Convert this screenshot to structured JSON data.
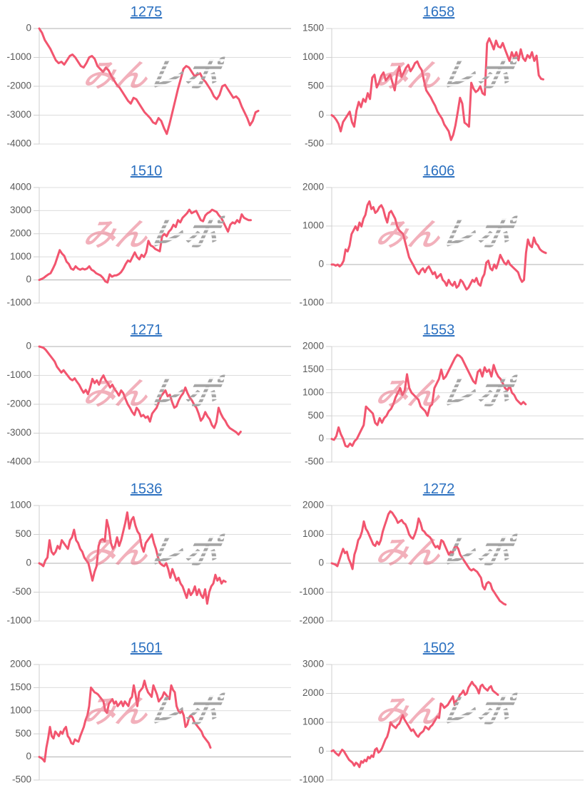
{
  "style": {
    "line_color": "#f2556f",
    "title_color": "#2b70c0",
    "grid_color": "#dcdcdc",
    "zero_line_color": "#b0b0b0",
    "axis_line_color": "#cfcfcf",
    "tick_label_color": "#595959",
    "watermark_pink": "#e77084",
    "watermark_gray": "#a5a5a5"
  },
  "watermark": {
    "pink_text": "みん",
    "gray_text": "レポ"
  },
  "chart_data": [
    {
      "type": "line",
      "title": "1275",
      "ylim": [
        -4000,
        0
      ],
      "yticks": [
        0,
        -1000,
        -2000,
        -3000,
        -4000
      ],
      "x_end_frac": 0.87,
      "grid": true,
      "legend": "none",
      "values": [
        0,
        -150,
        -400,
        -550,
        -700,
        -900,
        -1100,
        -1200,
        -1150,
        -1250,
        -1100,
        -950,
        -900,
        -1000,
        -1150,
        -1300,
        -1350,
        -1200,
        -1000,
        -950,
        -1050,
        -1300,
        -1400,
        -1500,
        -1350,
        -1450,
        -1650,
        -1800,
        -1950,
        -2050,
        -2200,
        -2350,
        -2500,
        -2600,
        -2400,
        -2450,
        -2600,
        -2750,
        -2900,
        -3000,
        -3100,
        -3250,
        -3300,
        -3100,
        -3200,
        -3450,
        -3650,
        -3300,
        -2900,
        -2500,
        -2100,
        -1750,
        -1400,
        -1300,
        -1350,
        -1500,
        -1650,
        -1600,
        -1550,
        -1750,
        -1850,
        -2000,
        -2150,
        -2350,
        -2450,
        -2300,
        -2000,
        -1950,
        -2100,
        -2250,
        -2400,
        -2350,
        -2450,
        -2700,
        -2900,
        -3100,
        -3350,
        -3200,
        -2900,
        -2850
      ]
    },
    {
      "type": "line",
      "title": "1658",
      "ylim": [
        -500,
        1500
      ],
      "yticks": [
        1500,
        1000,
        500,
        0,
        -500
      ],
      "x_end_frac": 0.84,
      "grid": true,
      "legend": "none",
      "values": [
        0,
        -30,
        -80,
        -150,
        -280,
        -120,
        -60,
        0,
        60,
        -120,
        -200,
        80,
        230,
        140,
        280,
        230,
        380,
        280,
        650,
        700,
        480,
        560,
        680,
        740,
        600,
        650,
        700,
        560,
        430,
        700,
        840,
        660,
        740,
        820,
        870,
        760,
        820,
        900,
        930,
        840,
        780,
        600,
        430,
        370,
        310,
        230,
        160,
        60,
        0,
        -60,
        -160,
        -220,
        -280,
        -430,
        -340,
        -170,
        60,
        300,
        200,
        -130,
        -160,
        -200,
        560,
        460,
        400,
        430,
        500,
        380,
        350,
        1240,
        1330,
        1240,
        1140,
        1290,
        1190,
        1170,
        1250,
        1140,
        1040,
        940,
        1090,
        990,
        1090,
        950,
        1140,
        990,
        940,
        1040,
        990,
        1090,
        940,
        1030,
        690,
        630,
        620
      ]
    },
    {
      "type": "line",
      "title": "1510",
      "ylim": [
        -1000,
        4000
      ],
      "yticks": [
        4000,
        3000,
        2000,
        1000,
        0,
        -1000
      ],
      "x_end_frac": 0.84,
      "grid": true,
      "legend": "none",
      "values": [
        0,
        40,
        90,
        170,
        240,
        290,
        480,
        690,
        990,
        1290,
        1140,
        1040,
        790,
        690,
        490,
        440,
        590,
        490,
        440,
        490,
        450,
        490,
        590,
        440,
        390,
        290,
        240,
        190,
        90,
        -60,
        -110,
        240,
        140,
        190,
        200,
        250,
        340,
        490,
        690,
        840,
        790,
        990,
        1190,
        990,
        890,
        1090,
        990,
        1190,
        1690,
        1490,
        1440,
        1340,
        1290,
        1240,
        1890,
        1990,
        1890,
        2090,
        2190,
        2390,
        2290,
        2590,
        2490,
        2690,
        2790,
        2890,
        3040,
        2890,
        2940,
        2990,
        2790,
        2590,
        2540,
        2790,
        2890,
        2940,
        3040,
        2990,
        2940,
        2790,
        2690,
        2490,
        2290,
        2090,
        2390,
        2490,
        2440,
        2590,
        2490,
        2840,
        2690,
        2640,
        2590,
        2590
      ]
    },
    {
      "type": "line",
      "title": "1606",
      "ylim": [
        -1000,
        2000
      ],
      "yticks": [
        2000,
        1000,
        0,
        -1000
      ],
      "x_end_frac": 0.85,
      "grid": true,
      "legend": "none",
      "values": [
        0,
        0,
        -30,
        0,
        -50,
        0,
        100,
        390,
        340,
        490,
        790,
        890,
        990,
        890,
        1090,
        990,
        1190,
        1290,
        1540,
        1640,
        1440,
        1490,
        1340,
        1390,
        1490,
        1540,
        1440,
        1240,
        1090,
        1340,
        1390,
        1290,
        1190,
        990,
        890,
        840,
        790,
        590,
        390,
        190,
        90,
        0,
        -100,
        -200,
        -250,
        -150,
        -100,
        -200,
        -100,
        -50,
        -150,
        -250,
        -200,
        -350,
        -300,
        -250,
        -400,
        -450,
        -550,
        -400,
        -500,
        -550,
        -450,
        -600,
        -550,
        -400,
        -450,
        -550,
        -650,
        -600,
        -500,
        -400,
        -450,
        -350,
        -500,
        -550,
        -350,
        -250,
        50,
        100,
        -100,
        -150,
        0,
        -100,
        50,
        250,
        150,
        50,
        0,
        100,
        0,
        -50,
        -100,
        -150,
        -200,
        -350,
        -450,
        -400,
        300,
        650,
        500,
        450,
        700,
        550,
        500,
        400,
        350,
        320,
        300
      ]
    },
    {
      "type": "line",
      "title": "1271",
      "ylim": [
        -4000,
        0
      ],
      "yticks": [
        0,
        -1000,
        -2000,
        -3000,
        -4000
      ],
      "x_end_frac": 0.8,
      "grid": true,
      "legend": "none",
      "values": [
        0,
        -20,
        -50,
        -120,
        -220,
        -320,
        -420,
        -520,
        -700,
        -800,
        -900,
        -820,
        -920,
        -1020,
        -1120,
        -1170,
        -1100,
        -1220,
        -1320,
        -1470,
        -1600,
        -1500,
        -1650,
        -1420,
        -1120,
        -1270,
        -1170,
        -1320,
        -1120,
        -1000,
        -1170,
        -1270,
        -1420,
        -1320,
        -1470,
        -1570,
        -1700,
        -1520,
        -1620,
        -1820,
        -2000,
        -2120,
        -2270,
        -2370,
        -2120,
        -2220,
        -2420,
        -2370,
        -2470,
        -2420,
        -2600,
        -2320,
        -2220,
        -2120,
        -1920,
        -1720,
        -1620,
        -1520,
        -1720,
        -1670,
        -1920,
        -2120,
        -2070,
        -1870,
        -1720,
        -1620,
        -1420,
        -1620,
        -1770,
        -1870,
        -2020,
        -2120,
        -2320,
        -2570,
        -2470,
        -2270,
        -2420,
        -2520,
        -2720,
        -2820,
        -2620,
        -2120,
        -2320,
        -2470,
        -2570,
        -2720,
        -2820,
        -2870,
        -2920,
        -2970,
        -3050,
        -2950
      ]
    },
    {
      "type": "line",
      "title": "1553",
      "ylim": [
        -500,
        2000
      ],
      "yticks": [
        2000,
        1500,
        1000,
        500,
        0,
        -500
      ],
      "x_end_frac": 0.77,
      "grid": true,
      "legend": "none",
      "values": [
        0,
        -20,
        60,
        250,
        100,
        0,
        -150,
        -170,
        -100,
        -150,
        -50,
        0,
        100,
        200,
        300,
        700,
        650,
        600,
        550,
        350,
        300,
        450,
        350,
        450,
        500,
        600,
        650,
        750,
        900,
        1000,
        1100,
        950,
        1050,
        1400,
        1100,
        1000,
        950,
        900,
        850,
        700,
        650,
        600,
        500,
        700,
        750,
        1100,
        1200,
        1300,
        1500,
        1300,
        1350,
        1450,
        1550,
        1650,
        1750,
        1820,
        1800,
        1750,
        1650,
        1550,
        1450,
        1350,
        1250,
        1200,
        1450,
        1500,
        1350,
        1550,
        1450,
        1500,
        1350,
        1600,
        1450,
        1350,
        1300,
        1200,
        1100,
        1050,
        1150,
        1000,
        950,
        850,
        800,
        750,
        800,
        750
      ]
    },
    {
      "type": "line",
      "title": "1536",
      "ylim": [
        -1000,
        1000
      ],
      "yticks": [
        1000,
        500,
        0,
        -500,
        -1000
      ],
      "x_end_frac": 0.74,
      "grid": true,
      "legend": "none",
      "values": [
        0,
        -20,
        -50,
        50,
        100,
        400,
        200,
        150,
        200,
        300,
        250,
        400,
        350,
        300,
        250,
        400,
        450,
        580,
        400,
        350,
        250,
        200,
        100,
        50,
        0,
        -150,
        -300,
        -150,
        -50,
        300,
        400,
        420,
        380,
        750,
        600,
        350,
        250,
        300,
        450,
        300,
        400,
        550,
        700,
        880,
        600,
        750,
        800,
        650,
        550,
        500,
        300,
        200,
        350,
        400,
        450,
        500,
        350,
        250,
        100,
        0,
        -30,
        -50,
        0,
        -100,
        -250,
        -100,
        -200,
        -300,
        -250,
        -350,
        -400,
        -500,
        -600,
        -450,
        -550,
        -500,
        -400,
        -550,
        -450,
        -550,
        -600,
        -450,
        -700,
        -500,
        -400,
        -350,
        -200,
        -300,
        -250,
        -350,
        -300,
        -320
      ]
    },
    {
      "type": "line",
      "title": "1272",
      "ylim": [
        -2000,
        2000
      ],
      "yticks": [
        2000,
        1000,
        0,
        -1000,
        -2000
      ],
      "x_end_frac": 0.69,
      "grid": true,
      "legend": "none",
      "values": [
        0,
        -20,
        -50,
        -100,
        100,
        300,
        500,
        350,
        400,
        150,
        0,
        -200,
        300,
        500,
        800,
        900,
        1100,
        1450,
        1200,
        1100,
        950,
        800,
        650,
        600,
        750,
        650,
        800,
        1100,
        1300,
        1500,
        1700,
        1800,
        1750,
        1650,
        1550,
        1400,
        1450,
        1500,
        1400,
        1350,
        1200,
        1000,
        900,
        850,
        1000,
        1200,
        1550,
        1400,
        1150,
        1100,
        1000,
        950,
        900,
        800,
        650,
        550,
        600,
        500,
        800,
        750,
        600,
        450,
        300,
        400,
        350,
        550,
        600,
        500,
        300,
        200,
        100,
        0,
        -100,
        -200,
        -250,
        -200,
        -250,
        -300,
        -400,
        -500,
        -800,
        -900,
        -700,
        -650,
        -700,
        -900,
        -1000,
        -1100,
        -1200,
        -1300,
        -1350,
        -1400,
        -1430
      ]
    },
    {
      "type": "line",
      "title": "1501",
      "ylim": [
        -500,
        2000
      ],
      "yticks": [
        2000,
        1500,
        1000,
        500,
        0,
        -500
      ],
      "x_end_frac": 0.68,
      "grid": true,
      "legend": "none",
      "values": [
        0,
        -20,
        -50,
        -100,
        200,
        400,
        650,
        450,
        400,
        550,
        500,
        450,
        550,
        500,
        600,
        650,
        450,
        400,
        300,
        280,
        380,
        350,
        330,
        450,
        550,
        650,
        800,
        900,
        1100,
        1500,
        1450,
        1400,
        1380,
        1350,
        1300,
        1250,
        1200,
        1000,
        950,
        1150,
        1200,
        1250,
        1150,
        1200,
        1100,
        1150,
        1200,
        1100,
        1200,
        1150,
        1100,
        1250,
        1300,
        1550,
        1350,
        1100,
        1400,
        1450,
        1500,
        1650,
        1500,
        1400,
        1350,
        1300,
        1550,
        1450,
        1350,
        1200,
        1250,
        1300,
        1400,
        1350,
        1300,
        1250,
        1550,
        1450,
        1400,
        1100,
        1000,
        950,
        1000,
        900,
        650,
        700,
        850,
        900,
        850,
        750,
        700,
        650,
        600,
        550,
        450,
        400,
        350,
        300,
        200
      ]
    },
    {
      "type": "line",
      "title": "1502",
      "ylim": [
        -1000,
        3000
      ],
      "yticks": [
        3000,
        2000,
        1000,
        0,
        -1000
      ],
      "x_end_frac": 0.66,
      "grid": true,
      "legend": "none",
      "values": [
        0,
        30,
        -50,
        -100,
        -150,
        -50,
        50,
        0,
        -100,
        -200,
        -300,
        -350,
        -400,
        -500,
        -400,
        -450,
        -550,
        -350,
        -400,
        -300,
        -350,
        -200,
        -250,
        -150,
        -200,
        50,
        100,
        -50,
        0,
        100,
        250,
        400,
        500,
        700,
        1000,
        900,
        850,
        800,
        900,
        950,
        1100,
        1250,
        1100,
        1000,
        900,
        800,
        700,
        750,
        650,
        550,
        500,
        600,
        650,
        700,
        850,
        800,
        750,
        850,
        900,
        1000,
        1100,
        1200,
        1150,
        1650,
        1600,
        1500,
        1550,
        1600,
        1700,
        1800,
        1900,
        1600,
        1750,
        1800,
        1950,
        2000,
        2100,
        1950,
        2000,
        2200,
        2300,
        2400,
        2300,
        2250,
        2150,
        2000,
        2250,
        2300,
        2200,
        2150,
        2100,
        2200,
        2250,
        2100,
        2050,
        2000,
        1950
      ]
    }
  ]
}
